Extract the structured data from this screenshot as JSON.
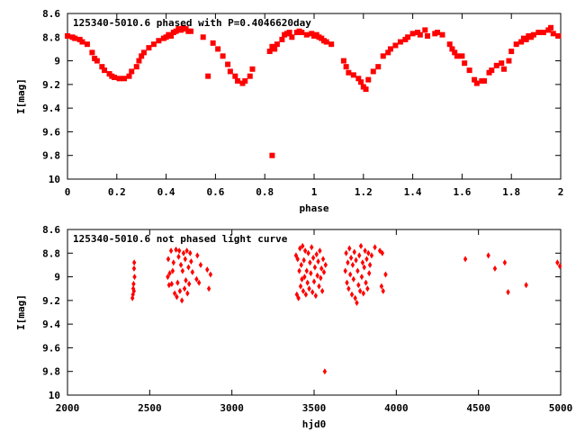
{
  "chart_data": [
    {
      "type": "scatter",
      "title": "125340-5010.6 phased with P=0.4046620day",
      "xlabel": "phase",
      "ylabel": "I[mag]",
      "xlim": [
        0,
        2
      ],
      "ylim": [
        8.6,
        10
      ],
      "y_inverted": true,
      "xticks": [
        0,
        0.2,
        0.4,
        0.6,
        0.8,
        1,
        1.2,
        1.4,
        1.6,
        1.8,
        2
      ],
      "yticks": [
        8.6,
        8.8,
        9,
        9.2,
        9.4,
        9.6,
        9.8,
        10
      ],
      "marker": "filled-square",
      "color": "#ff0000",
      "points": [
        [
          0.0,
          8.79
        ],
        [
          0.02,
          8.8
        ],
        [
          0.03,
          8.81
        ],
        [
          0.05,
          8.82
        ],
        [
          0.06,
          8.84
        ],
        [
          0.08,
          8.86
        ],
        [
          0.1,
          8.93
        ],
        [
          0.11,
          8.98
        ],
        [
          0.12,
          9.0
        ],
        [
          0.14,
          9.05
        ],
        [
          0.15,
          9.08
        ],
        [
          0.17,
          9.11
        ],
        [
          0.18,
          9.13
        ],
        [
          0.19,
          9.14
        ],
        [
          0.21,
          9.15
        ],
        [
          0.23,
          9.15
        ],
        [
          0.25,
          9.13
        ],
        [
          0.26,
          9.09
        ],
        [
          0.28,
          9.05
        ],
        [
          0.29,
          9.0
        ],
        [
          0.3,
          8.96
        ],
        [
          0.31,
          8.93
        ],
        [
          0.33,
          8.89
        ],
        [
          0.35,
          8.86
        ],
        [
          0.37,
          8.83
        ],
        [
          0.39,
          8.81
        ],
        [
          0.4,
          8.8
        ],
        [
          0.41,
          8.78
        ],
        [
          0.42,
          8.79
        ],
        [
          0.43,
          8.76
        ],
        [
          0.44,
          8.75
        ],
        [
          0.45,
          8.73
        ],
        [
          0.46,
          8.74
        ],
        [
          0.47,
          8.72
        ],
        [
          0.48,
          8.73
        ],
        [
          0.49,
          8.75
        ],
        [
          0.5,
          8.75
        ],
        [
          0.55,
          8.8
        ],
        [
          0.57,
          9.13
        ],
        [
          0.59,
          8.85
        ],
        [
          0.61,
          8.9
        ],
        [
          0.63,
          8.96
        ],
        [
          0.65,
          9.03
        ],
        [
          0.66,
          9.09
        ],
        [
          0.68,
          9.13
        ],
        [
          0.69,
          9.17
        ],
        [
          0.71,
          9.19
        ],
        [
          0.72,
          9.17
        ],
        [
          0.74,
          9.13
        ],
        [
          0.75,
          9.07
        ],
        [
          0.83,
          9.8
        ],
        [
          0.82,
          8.92
        ],
        [
          0.83,
          8.88
        ],
        [
          0.84,
          8.9
        ],
        [
          0.85,
          8.86
        ],
        [
          0.87,
          8.82
        ],
        [
          0.88,
          8.78
        ],
        [
          0.89,
          8.77
        ],
        [
          0.9,
          8.76
        ],
        [
          0.91,
          8.8
        ],
        [
          0.93,
          8.76
        ],
        [
          0.94,
          8.75
        ],
        [
          0.95,
          8.76
        ],
        [
          0.97,
          8.78
        ],
        [
          0.99,
          8.77
        ],
        [
          1.0,
          8.79
        ],
        [
          1.01,
          8.78
        ],
        [
          1.02,
          8.8
        ],
        [
          1.03,
          8.81
        ],
        [
          1.04,
          8.83
        ],
        [
          1.05,
          8.84
        ],
        [
          1.07,
          8.86
        ],
        [
          1.12,
          9.0
        ],
        [
          1.13,
          9.05
        ],
        [
          1.14,
          9.1
        ],
        [
          1.16,
          9.12
        ],
        [
          1.18,
          9.15
        ],
        [
          1.19,
          9.18
        ],
        [
          1.2,
          9.22
        ],
        [
          1.21,
          9.24
        ],
        [
          1.22,
          9.16
        ],
        [
          1.24,
          9.09
        ],
        [
          1.26,
          9.05
        ],
        [
          1.28,
          8.96
        ],
        [
          1.3,
          8.93
        ],
        [
          1.31,
          8.9
        ],
        [
          1.33,
          8.87
        ],
        [
          1.35,
          8.84
        ],
        [
          1.37,
          8.82
        ],
        [
          1.38,
          8.8
        ],
        [
          1.4,
          8.77
        ],
        [
          1.42,
          8.76
        ],
        [
          1.43,
          8.78
        ],
        [
          1.45,
          8.74
        ],
        [
          1.46,
          8.79
        ],
        [
          1.49,
          8.77
        ],
        [
          1.5,
          8.76
        ],
        [
          1.52,
          8.78
        ],
        [
          1.55,
          8.86
        ],
        [
          1.56,
          8.9
        ],
        [
          1.57,
          8.93
        ],
        [
          1.58,
          8.96
        ],
        [
          1.6,
          8.96
        ],
        [
          1.61,
          9.02
        ],
        [
          1.63,
          9.08
        ],
        [
          1.65,
          9.16
        ],
        [
          1.66,
          9.19
        ],
        [
          1.68,
          9.17
        ],
        [
          1.69,
          9.17
        ],
        [
          1.71,
          9.1
        ],
        [
          1.72,
          9.08
        ],
        [
          1.74,
          9.04
        ],
        [
          1.76,
          9.02
        ],
        [
          1.77,
          9.07
        ],
        [
          1.79,
          9.0
        ],
        [
          1.8,
          8.92
        ],
        [
          1.82,
          8.86
        ],
        [
          1.84,
          8.84
        ],
        [
          1.85,
          8.81
        ],
        [
          1.86,
          8.82
        ],
        [
          1.87,
          8.79
        ],
        [
          1.88,
          8.8
        ],
        [
          1.89,
          8.78
        ],
        [
          1.91,
          8.76
        ],
        [
          1.93,
          8.76
        ],
        [
          1.95,
          8.74
        ],
        [
          1.96,
          8.72
        ],
        [
          1.97,
          8.77
        ],
        [
          1.99,
          8.79
        ]
      ]
    },
    {
      "type": "scatter",
      "title": "125340-5010.6 not phased light curve",
      "xlabel": "hjd0",
      "ylabel": "I[mag]",
      "xlim": [
        2000,
        5000
      ],
      "ylim": [
        8.6,
        10
      ],
      "y_inverted": true,
      "xticks": [
        2000,
        2500,
        3000,
        3500,
        4000,
        4500,
        5000
      ],
      "yticks": [
        8.6,
        8.8,
        9,
        9.2,
        9.4,
        9.6,
        9.8,
        10
      ],
      "marker": "diamond",
      "color": "#ff0000",
      "points": [
        [
          2395,
          9.18
        ],
        [
          2398,
          9.15
        ],
        [
          2400,
          9.1
        ],
        [
          2402,
          9.06
        ],
        [
          2404,
          9.12
        ],
        [
          2405,
          8.93
        ],
        [
          2406,
          8.88
        ],
        [
          2408,
          9.0
        ],
        [
          2610,
          9.0
        ],
        [
          2613,
          8.85
        ],
        [
          2618,
          9.07
        ],
        [
          2622,
          8.97
        ],
        [
          2630,
          8.78
        ],
        [
          2634,
          9.06
        ],
        [
          2640,
          8.95
        ],
        [
          2645,
          8.88
        ],
        [
          2652,
          9.14
        ],
        [
          2660,
          8.77
        ],
        [
          2665,
          9.17
        ],
        [
          2670,
          9.05
        ],
        [
          2676,
          8.83
        ],
        [
          2680,
          8.78
        ],
        [
          2684,
          9.12
        ],
        [
          2690,
          8.9
        ],
        [
          2696,
          9.2
        ],
        [
          2700,
          8.95
        ],
        [
          2706,
          8.8
        ],
        [
          2712,
          9.1
        ],
        [
          2716,
          8.85
        ],
        [
          2720,
          9.03
        ],
        [
          2726,
          8.78
        ],
        [
          2730,
          9.14
        ],
        [
          2736,
          8.92
        ],
        [
          2740,
          9.06
        ],
        [
          2746,
          8.8
        ],
        [
          2752,
          8.87
        ],
        [
          2760,
          8.96
        ],
        [
          2785,
          9.02
        ],
        [
          2790,
          8.82
        ],
        [
          2800,
          9.05
        ],
        [
          2810,
          8.9
        ],
        [
          2850,
          8.94
        ],
        [
          2860,
          9.1
        ],
        [
          2870,
          8.98
        ],
        [
          3390,
          8.82
        ],
        [
          3395,
          9.15
        ],
        [
          3400,
          8.85
        ],
        [
          3405,
          9.18
        ],
        [
          3410,
          8.95
        ],
        [
          3414,
          8.76
        ],
        [
          3418,
          9.08
        ],
        [
          3422,
          8.9
        ],
        [
          3426,
          9.02
        ],
        [
          3430,
          8.74
        ],
        [
          3434,
          9.12
        ],
        [
          3438,
          8.86
        ],
        [
          3442,
          9.0
        ],
        [
          3446,
          8.78
        ],
        [
          3450,
          9.15
        ],
        [
          3455,
          8.95
        ],
        [
          3460,
          9.05
        ],
        [
          3465,
          8.8
        ],
        [
          3470,
          9.1
        ],
        [
          3475,
          8.88
        ],
        [
          3480,
          8.97
        ],
        [
          3485,
          8.75
        ],
        [
          3490,
          9.13
        ],
        [
          3495,
          8.84
        ],
        [
          3500,
          9.04
        ],
        [
          3505,
          8.92
        ],
        [
          3510,
          9.16
        ],
        [
          3515,
          8.81
        ],
        [
          3520,
          8.99
        ],
        [
          3525,
          8.87
        ],
        [
          3530,
          9.08
        ],
        [
          3535,
          8.78
        ],
        [
          3540,
          9.01
        ],
        [
          3545,
          8.93
        ],
        [
          3550,
          9.12
        ],
        [
          3555,
          8.85
        ],
        [
          3560,
          8.96
        ],
        [
          3565,
          9.8
        ],
        [
          3570,
          8.9
        ],
        [
          3690,
          8.95
        ],
        [
          3695,
          8.8
        ],
        [
          3700,
          9.05
        ],
        [
          3705,
          8.88
        ],
        [
          3710,
          9.1
        ],
        [
          3715,
          8.76
        ],
        [
          3720,
          8.98
        ],
        [
          3725,
          8.84
        ],
        [
          3730,
          9.15
        ],
        [
          3735,
          8.9
        ],
        [
          3740,
          9.02
        ],
        [
          3745,
          8.79
        ],
        [
          3750,
          9.18
        ],
        [
          3755,
          8.86
        ],
        [
          3760,
          9.22
        ],
        [
          3765,
          8.95
        ],
        [
          3770,
          9.07
        ],
        [
          3775,
          8.82
        ],
        [
          3780,
          9.12
        ],
        [
          3785,
          8.74
        ],
        [
          3790,
          9.0
        ],
        [
          3795,
          8.88
        ],
        [
          3800,
          9.14
        ],
        [
          3805,
          8.92
        ],
        [
          3810,
          8.78
        ],
        [
          3815,
          9.05
        ],
        [
          3820,
          8.85
        ],
        [
          3825,
          9.1
        ],
        [
          3830,
          8.8
        ],
        [
          3835,
          8.97
        ],
        [
          3840,
          8.9
        ],
        [
          3850,
          8.82
        ],
        [
          3870,
          8.75
        ],
        [
          3900,
          8.78
        ],
        [
          3910,
          9.08
        ],
        [
          3915,
          8.8
        ],
        [
          3920,
          9.12
        ],
        [
          3935,
          8.98
        ],
        [
          4420,
          8.85
        ],
        [
          4560,
          8.82
        ],
        [
          4600,
          8.93
        ],
        [
          4660,
          8.88
        ],
        [
          4680,
          9.13
        ],
        [
          4790,
          9.07
        ],
        [
          4980,
          8.88
        ],
        [
          4995,
          8.91
        ]
      ]
    }
  ]
}
